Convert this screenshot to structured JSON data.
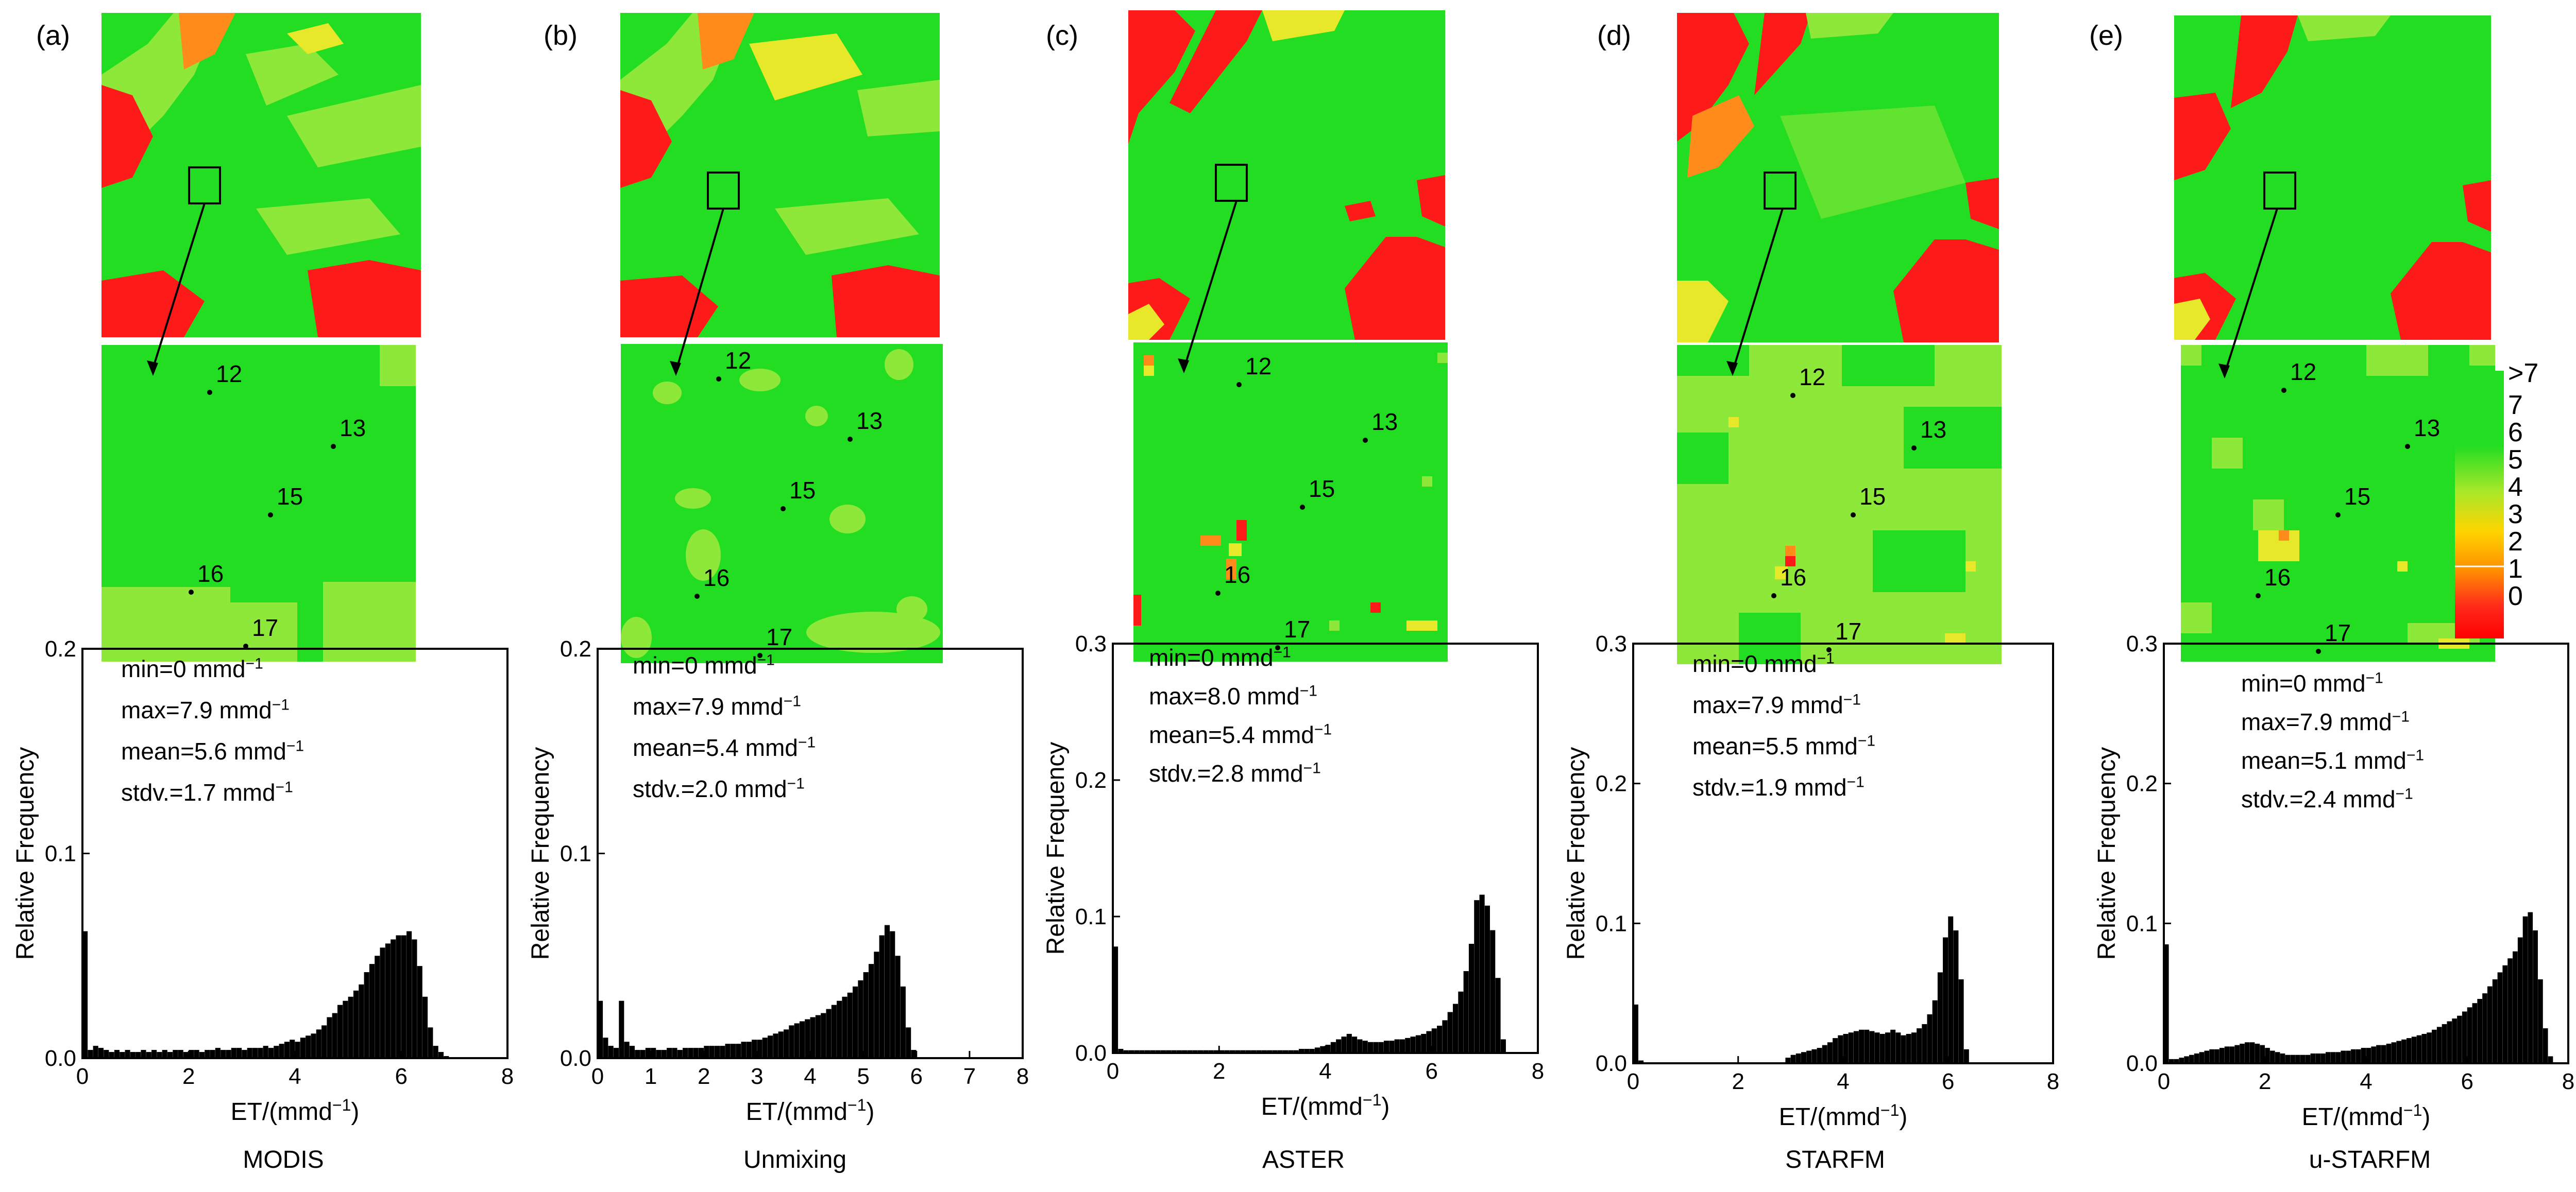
{
  "panels": [
    {
      "letter": "(a)",
      "method": "MODIS",
      "stats": {
        "min": "min=0 mmd",
        "max": "max=7.9 mmd",
        "mean": "mean=5.6 mmd",
        "stdv": "stdv.=1.7 mmd",
        "unit_exp": "−1"
      }
    },
    {
      "letter": "(b)",
      "method": "Unmixing",
      "stats": {
        "min": "min=0 mmd",
        "max": "max=7.9 mmd",
        "mean": "mean=5.4 mmd",
        "stdv": "stdv.=2.0 mmd",
        "unit_exp": "−1"
      }
    },
    {
      "letter": "(c)",
      "method": "ASTER",
      "stats": {
        "min": "min=0 mmd",
        "max": "max=8.0 mmd",
        "mean": "mean=5.4 mmd",
        "stdv": "stdv.=2.8 mmd",
        "unit_exp": "−1"
      }
    },
    {
      "letter": "(d)",
      "method": "STARFM",
      "stats": {
        "min": "min=0 mmd",
        "max": "max=7.9 mmd",
        "mean": "mean=5.5 mmd",
        "stdv": "stdv.=1.9 mmd",
        "unit_exp": "−1"
      }
    },
    {
      "letter": "(e)",
      "method": "u-STARFM",
      "stats": {
        "min": "min=0 mmd",
        "max": "max=7.9 mmd",
        "mean": "mean=5.1 mmd",
        "stdv": "stdv.=2.4 mmd",
        "unit_exp": "−1"
      }
    }
  ],
  "stations": [
    "12",
    "13",
    "15",
    "16",
    "17"
  ],
  "legend": {
    "labels": [
      ">7",
      "7",
      "6",
      "5",
      "4",
      "3",
      "2",
      "1",
      "0"
    ],
    "colors": [
      "#00d400",
      "#7fe000",
      "#d8e800",
      "#ffd400",
      "#ff8c00",
      "#ff0000"
    ]
  },
  "colors": {
    "green": "#22dd22",
    "lightgreen": "#8ee83a",
    "yellow": "#e8e82a",
    "orange": "#ff8c1a",
    "red": "#ff1a1a",
    "bars": "#000000"
  },
  "chart_data": [
    {
      "type": "bar",
      "panel": "(a)",
      "ylabel": "Relative Frequency",
      "xlabel": "ET/(mmd",
      "xlabel_sup": "−1",
      "xlabel_end": ")",
      "xlim": [
        0,
        8
      ],
      "ylim": [
        0,
        0.2
      ],
      "xticks": [
        "0",
        "2",
        "4",
        "6",
        "8"
      ],
      "yticks": [
        "0.0",
        "0.1",
        "0.2"
      ],
      "bin_width": 0.1,
      "x": [
        0.05,
        0.15,
        0.25,
        0.35,
        0.45,
        0.55,
        0.65,
        0.75,
        0.85,
        0.95,
        1.05,
        1.15,
        1.25,
        1.35,
        1.45,
        1.55,
        1.65,
        1.75,
        1.85,
        1.95,
        2.05,
        2.15,
        2.25,
        2.35,
        2.45,
        2.55,
        2.65,
        2.75,
        2.85,
        2.95,
        3.05,
        3.15,
        3.25,
        3.35,
        3.45,
        3.55,
        3.65,
        3.75,
        3.85,
        3.95,
        4.05,
        4.15,
        4.25,
        4.35,
        4.45,
        4.55,
        4.65,
        4.75,
        4.85,
        4.95,
        5.05,
        5.15,
        5.25,
        5.35,
        5.45,
        5.55,
        5.65,
        5.75,
        5.85,
        5.95,
        6.05,
        6.15,
        6.25,
        6.35,
        6.45,
        6.55,
        6.65,
        6.75,
        6.85
      ],
      "values": [
        0.062,
        0.004,
        0.006,
        0.005,
        0.004,
        0.003,
        0.004,
        0.003,
        0.004,
        0.003,
        0.003,
        0.004,
        0.003,
        0.004,
        0.003,
        0.004,
        0.003,
        0.004,
        0.004,
        0.003,
        0.004,
        0.004,
        0.003,
        0.004,
        0.004,
        0.005,
        0.004,
        0.004,
        0.005,
        0.005,
        0.004,
        0.005,
        0.005,
        0.005,
        0.006,
        0.005,
        0.006,
        0.007,
        0.008,
        0.009,
        0.008,
        0.01,
        0.011,
        0.012,
        0.014,
        0.016,
        0.02,
        0.022,
        0.026,
        0.028,
        0.03,
        0.033,
        0.036,
        0.042,
        0.046,
        0.05,
        0.054,
        0.056,
        0.058,
        0.06,
        0.06,
        0.062,
        0.058,
        0.045,
        0.03,
        0.015,
        0.006,
        0.003,
        0.001
      ]
    },
    {
      "type": "bar",
      "panel": "(b)",
      "ylabel": "Relative Frequency",
      "xlabel": "ET/(mmd",
      "xlabel_sup": "−1",
      "xlabel_end": ")",
      "xlim": [
        0,
        8
      ],
      "ylim": [
        0,
        0.2
      ],
      "xticks": [
        "0",
        "1",
        "2",
        "3",
        "4",
        "5",
        "6",
        "7",
        "8"
      ],
      "yticks": [
        "0.0",
        "0.1",
        "0.2"
      ],
      "bin_width": 0.1,
      "x": [
        0.05,
        0.15,
        0.25,
        0.35,
        0.45,
        0.55,
        0.65,
        0.75,
        0.85,
        0.95,
        1.05,
        1.15,
        1.25,
        1.35,
        1.45,
        1.55,
        1.65,
        1.75,
        1.85,
        1.95,
        2.05,
        2.15,
        2.25,
        2.35,
        2.45,
        2.55,
        2.65,
        2.75,
        2.85,
        2.95,
        3.05,
        3.15,
        3.25,
        3.35,
        3.45,
        3.55,
        3.65,
        3.75,
        3.85,
        3.95,
        4.05,
        4.15,
        4.25,
        4.35,
        4.45,
        4.55,
        4.65,
        4.75,
        4.85,
        4.95,
        5.05,
        5.15,
        5.25,
        5.35,
        5.45,
        5.55,
        5.65,
        5.75,
        5.85,
        5.95
      ],
      "values": [
        0.028,
        0.01,
        0.006,
        0.005,
        0.028,
        0.008,
        0.006,
        0.004,
        0.004,
        0.005,
        0.005,
        0.004,
        0.004,
        0.005,
        0.005,
        0.004,
        0.005,
        0.005,
        0.005,
        0.005,
        0.006,
        0.006,
        0.006,
        0.006,
        0.007,
        0.007,
        0.007,
        0.008,
        0.008,
        0.009,
        0.009,
        0.01,
        0.011,
        0.012,
        0.013,
        0.014,
        0.016,
        0.017,
        0.018,
        0.019,
        0.02,
        0.021,
        0.022,
        0.024,
        0.026,
        0.028,
        0.03,
        0.032,
        0.035,
        0.038,
        0.042,
        0.046,
        0.052,
        0.06,
        0.065,
        0.062,
        0.05,
        0.035,
        0.015,
        0.004
      ]
    },
    {
      "type": "bar",
      "panel": "(c)",
      "ylabel": "Relative Frequency",
      "xlabel": "ET/(mmd",
      "xlabel_sup": "−1",
      "xlabel_end": ")",
      "xlim": [
        0,
        8
      ],
      "ylim": [
        0,
        0.3
      ],
      "xticks": [
        "0",
        "2",
        "4",
        "6",
        "8"
      ],
      "yticks": [
        "0.0",
        "0.1",
        "0.2",
        "0.3"
      ],
      "bin_width": 0.1,
      "x": [
        0.05,
        0.15,
        0.25,
        0.35,
        0.45,
        0.55,
        0.65,
        0.75,
        0.85,
        0.95,
        1.05,
        1.15,
        1.25,
        1.35,
        1.45,
        1.55,
        1.65,
        1.75,
        1.85,
        1.95,
        2.05,
        2.15,
        2.25,
        2.35,
        2.45,
        2.55,
        2.65,
        2.75,
        2.85,
        2.95,
        3.05,
        3.15,
        3.25,
        3.35,
        3.45,
        3.55,
        3.65,
        3.75,
        3.85,
        3.95,
        4.05,
        4.15,
        4.25,
        4.35,
        4.45,
        4.55,
        4.65,
        4.75,
        4.85,
        4.95,
        5.05,
        5.15,
        5.25,
        5.35,
        5.45,
        5.55,
        5.65,
        5.75,
        5.85,
        5.95,
        6.05,
        6.15,
        6.25,
        6.35,
        6.45,
        6.55,
        6.65,
        6.75,
        6.85,
        6.95,
        7.05,
        7.15,
        7.25,
        7.35
      ],
      "values": [
        0.078,
        0.003,
        0.002,
        0.002,
        0.002,
        0.002,
        0.002,
        0.002,
        0.002,
        0.002,
        0.002,
        0.002,
        0.002,
        0.002,
        0.002,
        0.002,
        0.002,
        0.002,
        0.002,
        0.002,
        0.002,
        0.002,
        0.002,
        0.002,
        0.002,
        0.002,
        0.002,
        0.002,
        0.002,
        0.002,
        0.002,
        0.002,
        0.002,
        0.002,
        0.002,
        0.003,
        0.003,
        0.003,
        0.004,
        0.005,
        0.006,
        0.008,
        0.01,
        0.012,
        0.014,
        0.012,
        0.01,
        0.009,
        0.008,
        0.008,
        0.008,
        0.009,
        0.009,
        0.01,
        0.01,
        0.011,
        0.012,
        0.013,
        0.014,
        0.016,
        0.018,
        0.02,
        0.024,
        0.03,
        0.036,
        0.045,
        0.06,
        0.08,
        0.112,
        0.116,
        0.108,
        0.09,
        0.055,
        0.01
      ]
    },
    {
      "type": "bar",
      "panel": "(d)",
      "ylabel": "Relative Frequency",
      "xlabel": "ET/(mmd",
      "xlabel_sup": "−1",
      "xlabel_end": ")",
      "xlim": [
        0,
        8
      ],
      "ylim": [
        0,
        0.3
      ],
      "xticks": [
        "0",
        "2",
        "4",
        "6",
        "8"
      ],
      "yticks": [
        "0.0",
        "0.1",
        "0.2",
        "0.3"
      ],
      "bin_width": 0.1,
      "x": [
        0.05,
        0.15,
        2.95,
        3.05,
        3.15,
        3.25,
        3.35,
        3.45,
        3.55,
        3.65,
        3.75,
        3.85,
        3.95,
        4.05,
        4.15,
        4.25,
        4.35,
        4.45,
        4.55,
        4.65,
        4.75,
        4.85,
        4.95,
        5.05,
        5.15,
        5.25,
        5.35,
        5.45,
        5.55,
        5.65,
        5.75,
        5.85,
        5.95,
        6.05,
        6.15,
        6.25,
        6.35
      ],
      "values": [
        0.042,
        0.002,
        0.004,
        0.006,
        0.007,
        0.008,
        0.009,
        0.01,
        0.011,
        0.013,
        0.015,
        0.018,
        0.02,
        0.021,
        0.022,
        0.023,
        0.024,
        0.024,
        0.023,
        0.022,
        0.021,
        0.022,
        0.024,
        0.022,
        0.02,
        0.021,
        0.022,
        0.025,
        0.028,
        0.035,
        0.045,
        0.065,
        0.09,
        0.105,
        0.095,
        0.06,
        0.01
      ]
    },
    {
      "type": "bar",
      "panel": "(e)",
      "ylabel": "Relative Frequency",
      "xlabel": "ET/(mmd",
      "xlabel_sup": "−1",
      "xlabel_end": ")",
      "xlim": [
        0,
        8
      ],
      "ylim": [
        0,
        0.3
      ],
      "xticks": [
        "0",
        "2",
        "4",
        "6",
        "8"
      ],
      "yticks": [
        "0.0",
        "0.1",
        "0.2",
        "0.3"
      ],
      "bin_width": 0.1,
      "x": [
        0.05,
        0.15,
        0.25,
        0.35,
        0.45,
        0.55,
        0.65,
        0.75,
        0.85,
        0.95,
        1.05,
        1.15,
        1.25,
        1.35,
        1.45,
        1.55,
        1.65,
        1.75,
        1.85,
        1.95,
        2.05,
        2.15,
        2.25,
        2.35,
        2.45,
        2.55,
        2.65,
        2.75,
        2.85,
        2.95,
        3.05,
        3.15,
        3.25,
        3.35,
        3.45,
        3.55,
        3.65,
        3.75,
        3.85,
        3.95,
        4.05,
        4.15,
        4.25,
        4.35,
        4.45,
        4.55,
        4.65,
        4.75,
        4.85,
        4.95,
        5.05,
        5.15,
        5.25,
        5.35,
        5.45,
        5.55,
        5.65,
        5.75,
        5.85,
        5.95,
        6.05,
        6.15,
        6.25,
        6.35,
        6.45,
        6.55,
        6.65,
        6.75,
        6.85,
        6.95,
        7.05,
        7.15,
        7.25,
        7.35,
        7.45,
        7.55,
        7.65
      ],
      "values": [
        0.085,
        0.003,
        0.003,
        0.004,
        0.005,
        0.006,
        0.007,
        0.008,
        0.009,
        0.01,
        0.01,
        0.011,
        0.012,
        0.012,
        0.013,
        0.014,
        0.015,
        0.015,
        0.014,
        0.013,
        0.011,
        0.009,
        0.008,
        0.007,
        0.006,
        0.006,
        0.006,
        0.006,
        0.006,
        0.007,
        0.007,
        0.007,
        0.008,
        0.008,
        0.008,
        0.009,
        0.009,
        0.01,
        0.01,
        0.011,
        0.011,
        0.012,
        0.013,
        0.013,
        0.014,
        0.015,
        0.016,
        0.017,
        0.018,
        0.019,
        0.02,
        0.021,
        0.022,
        0.024,
        0.026,
        0.028,
        0.03,
        0.032,
        0.034,
        0.037,
        0.04,
        0.043,
        0.046,
        0.05,
        0.055,
        0.06,
        0.065,
        0.07,
        0.075,
        0.08,
        0.09,
        0.105,
        0.108,
        0.095,
        0.06,
        0.025,
        0.005
      ]
    }
  ]
}
